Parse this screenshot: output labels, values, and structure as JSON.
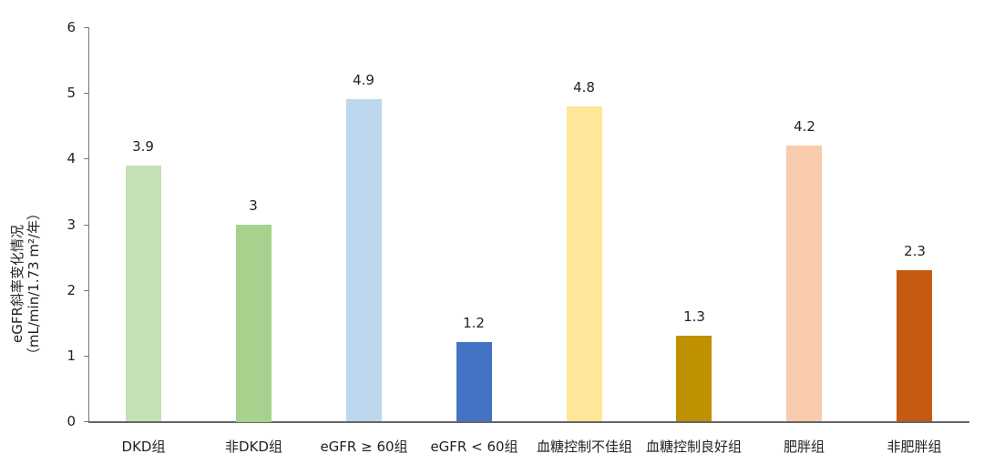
{
  "chart_data": {
    "type": "bar",
    "title": "",
    "xlabel": "",
    "ylabel": "eGFR斜率变化情况（mL/min/1.73 m²/年）",
    "ylabel_lines": [
      "eGFR斜率变化情况",
      "（mL/min/1.73 m²/年）"
    ],
    "ylim": [
      0,
      6
    ],
    "yticks": [
      0,
      1,
      2,
      3,
      4,
      5,
      6
    ],
    "grid": false,
    "legend": null,
    "categories": [
      "DKD组",
      "非DKD组",
      "eGFR ≥ 60组",
      "eGFR < 60组",
      "血糖控制不佳组",
      "血糖控制良好组",
      "肥胖组",
      "非肥胖组"
    ],
    "values": [
      3.9,
      3,
      4.9,
      1.2,
      4.8,
      1.3,
      4.2,
      2.3
    ],
    "value_labels": [
      "3.9",
      "3",
      "4.9",
      "1.2",
      "4.8",
      "1.3",
      "4.2",
      "2.3"
    ],
    "colors": [
      "#C5E0B4",
      "#A9D18E",
      "#BDD7EE",
      "#4472C4",
      "#FFE699",
      "#BF9000",
      "#F8CBAD",
      "#C55A11"
    ]
  }
}
